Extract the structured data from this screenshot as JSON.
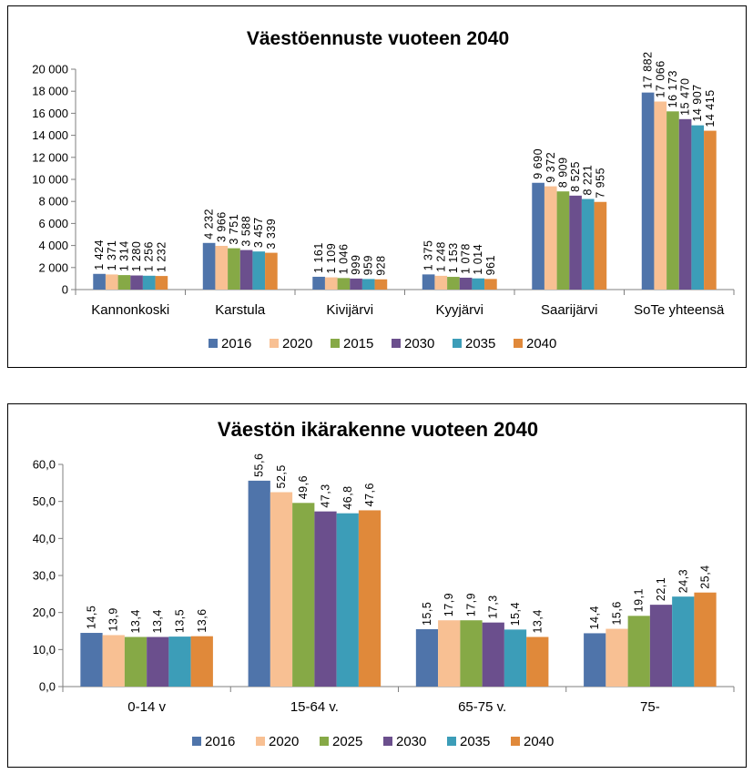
{
  "colors": [
    "#4F74AA",
    "#F8C093",
    "#86A946",
    "#6B4F8D",
    "#3C9DB8",
    "#E0893A"
  ],
  "chart_data": [
    {
      "type": "bar",
      "title": "Väestöennuste vuoteen 2040",
      "categories": [
        "Kannonkoski",
        "Karstula",
        "Kivijärvi",
        "Kyyjärvi",
        "Saarijärvi",
        "SoTe yhteensä"
      ],
      "series": [
        {
          "name": "2016",
          "values": [
            1424,
            4232,
            1161,
            1375,
            9690,
            17882
          ],
          "labels": [
            "1 424",
            "4 232",
            "1 161",
            "1 375",
            "9 690",
            "17 882"
          ]
        },
        {
          "name": "2020",
          "values": [
            1371,
            3966,
            1109,
            1248,
            9372,
            17066
          ],
          "labels": [
            "1 371",
            "3 966",
            "1 109",
            "1 248",
            "9 372",
            "17 066"
          ]
        },
        {
          "name": "2015",
          "values": [
            1314,
            3751,
            1046,
            1153,
            8909,
            16173
          ],
          "labels": [
            "1 314",
            "3 751",
            "1 046",
            "1 153",
            "8 909",
            "16 173"
          ]
        },
        {
          "name": "2030",
          "values": [
            1280,
            3588,
            999,
            1078,
            8525,
            15470
          ],
          "labels": [
            "1 280",
            "3 588",
            "999",
            "1 078",
            "8 525",
            "15 470"
          ]
        },
        {
          "name": "2035",
          "values": [
            1256,
            3457,
            959,
            1014,
            8221,
            14907
          ],
          "labels": [
            "1 256",
            "3 457",
            "959",
            "1 014",
            "8 221",
            "14 907"
          ]
        },
        {
          "name": "2040",
          "values": [
            1232,
            3339,
            928,
            961,
            7955,
            14415
          ],
          "labels": [
            "1 232",
            "3 339",
            "928",
            "961",
            "7 955",
            "14 415"
          ]
        }
      ],
      "ylim": [
        0,
        20000
      ],
      "yticks": [
        0,
        2000,
        4000,
        6000,
        8000,
        10000,
        12000,
        14000,
        16000,
        18000,
        20000
      ],
      "ytick_labels": [
        "0",
        "2 000",
        "4 000",
        "6 000",
        "8 000",
        "10 000",
        "12 000",
        "14 000",
        "16 000",
        "18 000",
        "20 000"
      ],
      "grid": false,
      "legend_position": "bottom"
    },
    {
      "type": "bar",
      "title": "Väestön ikärakenne vuoteen 2040",
      "categories": [
        "0-14 v",
        "15-64 v.",
        "65-75 v.",
        "75-"
      ],
      "series": [
        {
          "name": "2016",
          "values": [
            14.5,
            55.6,
            15.5,
            14.4
          ],
          "labels": [
            "14,5",
            "55,6",
            "15,5",
            "14,4"
          ]
        },
        {
          "name": "2020",
          "values": [
            13.9,
            52.5,
            17.9,
            15.6
          ],
          "labels": [
            "13,9",
            "52,5",
            "17,9",
            "15,6"
          ]
        },
        {
          "name": "2025",
          "values": [
            13.4,
            49.6,
            17.9,
            19.1
          ],
          "labels": [
            "13,4",
            "49,6",
            "17,9",
            "19,1"
          ]
        },
        {
          "name": "2030",
          "values": [
            13.4,
            47.3,
            17.3,
            22.1
          ],
          "labels": [
            "13,4",
            "47,3",
            "17,3",
            "22,1"
          ]
        },
        {
          "name": "2035",
          "values": [
            13.5,
            46.8,
            15.4,
            24.3
          ],
          "labels": [
            "13,5",
            "46,8",
            "15,4",
            "24,3"
          ]
        },
        {
          "name": "2040",
          "values": [
            13.6,
            47.6,
            13.4,
            25.4
          ],
          "labels": [
            "13,6",
            "47,6",
            "13,4",
            "25,4"
          ]
        }
      ],
      "ylim": [
        0,
        60
      ],
      "yticks": [
        0,
        10,
        20,
        30,
        40,
        50,
        60
      ],
      "ytick_labels": [
        "0,0",
        "10,0",
        "20,0",
        "30,0",
        "40,0",
        "50,0",
        "60,0"
      ],
      "grid": false,
      "legend_position": "bottom"
    }
  ]
}
